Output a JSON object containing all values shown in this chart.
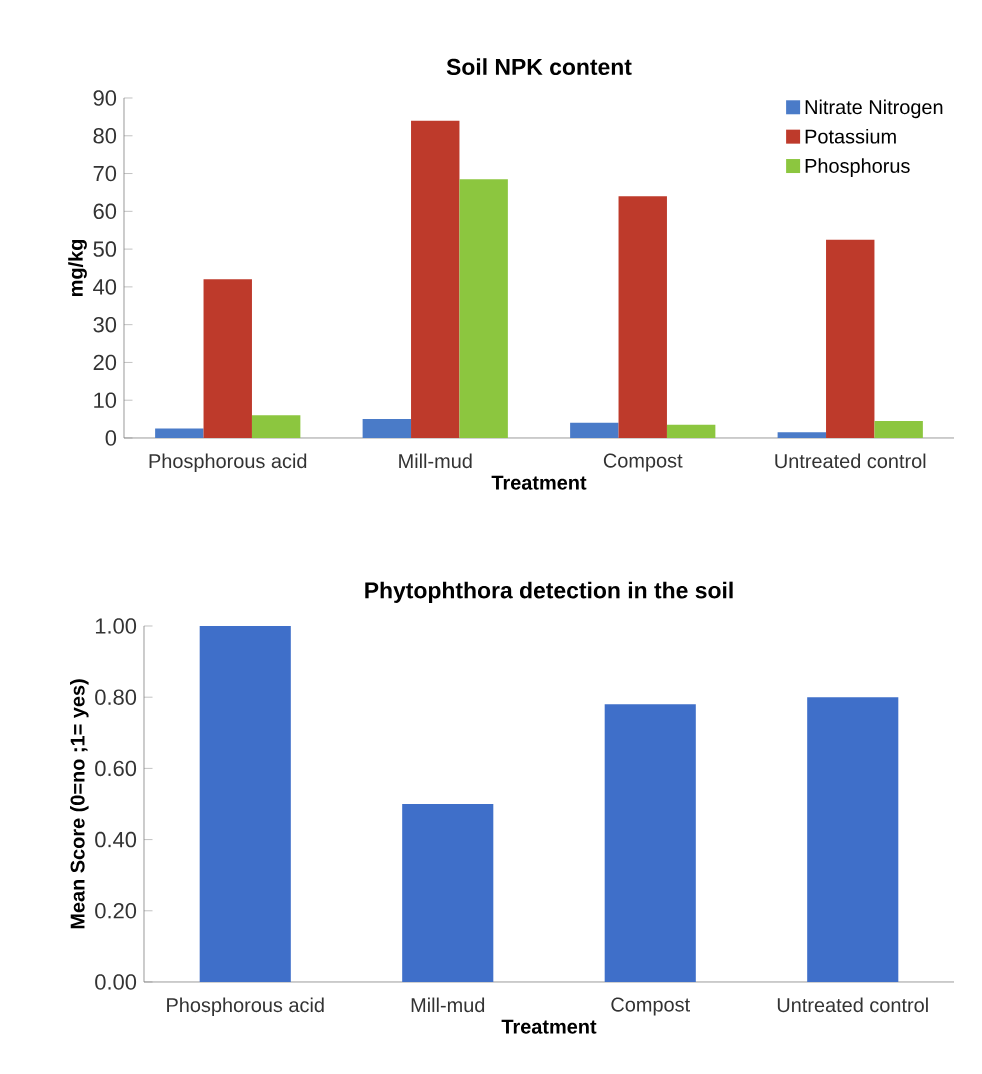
{
  "chart_data": [
    {
      "type": "bar",
      "title": "Soil NPK content",
      "xlabel": "Treatment",
      "ylabel": "mg/kg",
      "categories": [
        "Phosphorous acid",
        "Mill-mud",
        "Compost",
        "Untreated control"
      ],
      "series": [
        {
          "name": "Nitrate Nitrogen",
          "color": "#4a7bc8",
          "values": [
            2.5,
            5,
            4,
            1.5
          ]
        },
        {
          "name": "Potassium",
          "color": "#be3a2b",
          "values": [
            42,
            84,
            64,
            52.5
          ]
        },
        {
          "name": "Phosphorus",
          "color": "#8cc63f",
          "values": [
            6,
            68.5,
            3.5,
            4.5
          ]
        }
      ],
      "ylim": [
        0,
        90
      ],
      "yticks": [
        0,
        10,
        20,
        30,
        40,
        50,
        60,
        70,
        80,
        90
      ],
      "legend": "top right",
      "grid": false
    },
    {
      "type": "bar",
      "title": "Phytophthora detection in the soil",
      "xlabel": "Treatment",
      "ylabel": "Mean Score (0=no ;1= yes)",
      "categories": [
        "Phosphorous acid",
        "Mill-mud",
        "Compost",
        "Untreated control"
      ],
      "series": [
        {
          "color": "#3f6fc9",
          "values": [
            1.0,
            0.5,
            0.78,
            0.8
          ]
        }
      ],
      "ylim": [
        0,
        1
      ],
      "yticks": [
        {
          "value": 0,
          "label": "0.00"
        },
        {
          "value": 0.2,
          "label": "0.20"
        },
        {
          "value": 0.4,
          "label": "0.40"
        },
        {
          "value": 0.6,
          "label": "0.60"
        },
        {
          "value": 0.8,
          "label": "0.80"
        },
        {
          "value": 1,
          "label": "1.00"
        }
      ],
      "grid": false
    }
  ]
}
